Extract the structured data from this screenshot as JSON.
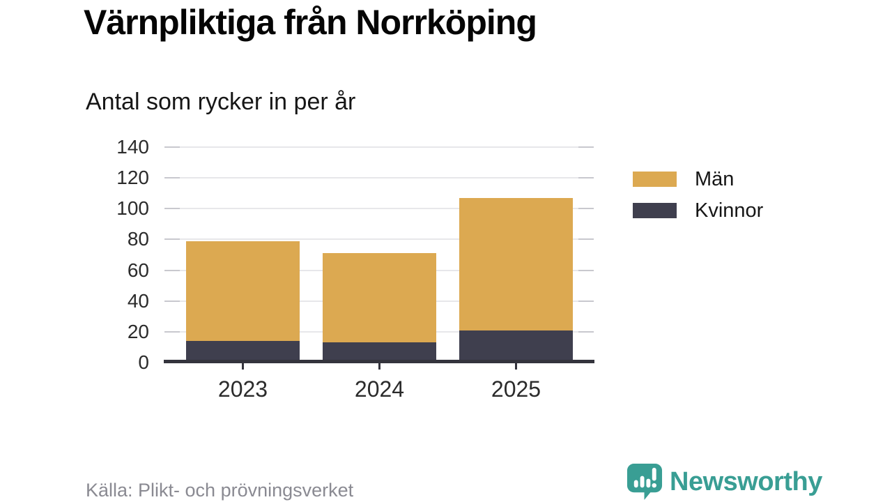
{
  "title": "Värnpliktiga från Norrköping",
  "subtitle": "Antal som rycker in per år",
  "source_note": "Källa: Plikt- och prövningsverket",
  "brand": {
    "name": "Newsworthy",
    "icon": "newsworthy-speech-bubble-chart-icon",
    "color": "#399e94"
  },
  "colors": {
    "men": "#dca951",
    "women": "#3f3f4e",
    "grid": "#e7e7ea",
    "grid_edge_dash": "#c8c8ce",
    "axis": "#34343d",
    "tick_text": "#2b2b2b",
    "source_text": "#8a8a92"
  },
  "chart_data": {
    "type": "bar",
    "stacked": true,
    "title": "Värnpliktiga från Norrköping",
    "subtitle": "Antal som rycker in per år",
    "categories": [
      "2023",
      "2024",
      "2025"
    ],
    "series": [
      {
        "name": "Män",
        "color": "#dca951",
        "values": [
          65,
          58,
          86
        ]
      },
      {
        "name": "Kvinnor",
        "color": "#3f3f4e",
        "values": [
          14,
          13,
          21
        ]
      }
    ],
    "stacked_totals": [
      79,
      71,
      107
    ],
    "xlabel": "",
    "ylabel": "",
    "ylim": [
      0,
      140
    ],
    "yticks": [
      0,
      20,
      40,
      60,
      80,
      100,
      120,
      140
    ],
    "grid": true,
    "legend_position": "right"
  }
}
